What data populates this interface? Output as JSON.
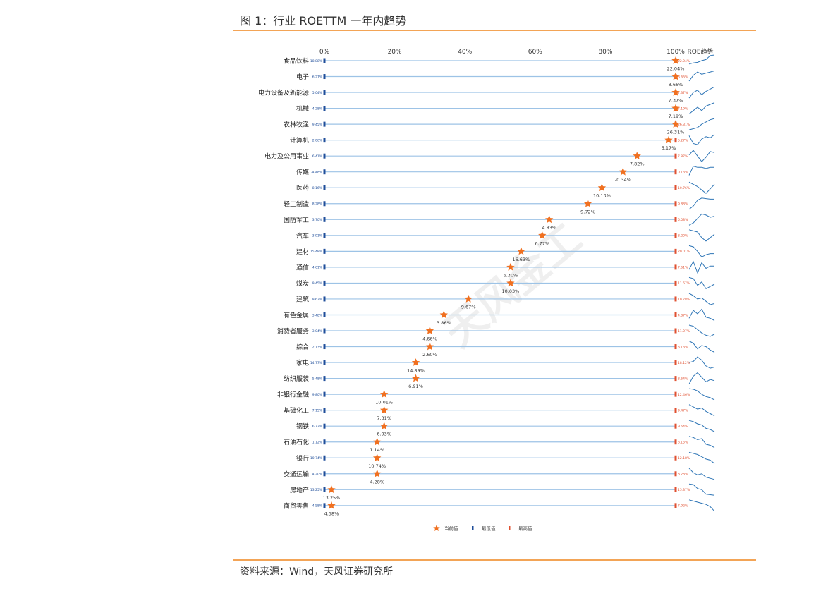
{
  "figure_title": "图 1：行业 ROETTM 一年内趋势",
  "source": "资料来源：Wind，天风证券研究所",
  "watermark": "天风金工",
  "colors": {
    "accent": "#f5a04f",
    "current": "#f07020",
    "min": "#1f4e9a",
    "max": "#e05030",
    "line": "#9dc3e6",
    "trend": "#2e75b6"
  },
  "chart_data": {
    "type": "scatter",
    "title": "",
    "x_axis_ticks": [
      "0%",
      "20%",
      "40%",
      "60%",
      "80%",
      "100%"
    ],
    "trend_column_title": "ROE趋势",
    "xlim": [
      0,
      100
    ],
    "legend": {
      "position": "bottom-center",
      "items": [
        "当前值",
        "最低值",
        "最高值"
      ]
    },
    "series": [
      {
        "name": "当前值",
        "marker": "star",
        "color": "#f07020"
      },
      {
        "name": "最低值",
        "marker": "bar",
        "color": "#1f4e9a"
      },
      {
        "name": "最高值",
        "marker": "bar",
        "color": "#e05030"
      }
    ],
    "industries": [
      {
        "name": "食品饮料",
        "pos": 100,
        "current": "22.04%",
        "min": "18.88%",
        "max": "22.04%",
        "trend": [
          0.2,
          0.3,
          0.35,
          0.5,
          0.6,
          0.95,
          1.0
        ]
      },
      {
        "name": "电子",
        "pos": 100,
        "current": "8.66%",
        "min": "6.27%",
        "max": "8.66%",
        "trend": [
          0.1,
          0.6,
          0.9,
          0.7,
          0.8,
          0.9,
          1.0
        ]
      },
      {
        "name": "电力设备及新能源",
        "pos": 100,
        "current": "7.37%",
        "min": "5.04%",
        "max": "7.37%",
        "trend": [
          0.0,
          0.5,
          0.7,
          0.3,
          0.6,
          0.8,
          1.0
        ]
      },
      {
        "name": "机械",
        "pos": 100,
        "current": "7.19%",
        "min": "4.28%",
        "max": "7.19%",
        "trend": [
          0.0,
          0.3,
          0.6,
          0.3,
          0.7,
          0.85,
          1.0
        ]
      },
      {
        "name": "农林牧渔",
        "pos": 100,
        "current": "26.31%",
        "min": "9.45%",
        "max": "26.31%",
        "trend": [
          0.0,
          0.1,
          0.2,
          0.5,
          0.7,
          0.9,
          1.0
        ]
      },
      {
        "name": "计算机",
        "pos": 98,
        "current": "5.17%",
        "min": "2.06%",
        "max": "5.27%",
        "trend": [
          0.9,
          0.2,
          0.1,
          0.6,
          0.8,
          0.7,
          1.0
        ]
      },
      {
        "name": "电力及公用事业",
        "pos": 89,
        "current": "7.82%",
        "min": "6.41%",
        "max": "7.87%",
        "trend": [
          0.6,
          1.0,
          0.5,
          0.0,
          0.4,
          0.9,
          0.8
        ]
      },
      {
        "name": "传媒",
        "pos": 85,
        "current": "-0.34%",
        "min": "-4.48%",
        "max": "0.16%",
        "trend": [
          0.2,
          1.0,
          0.9,
          0.9,
          0.8,
          0.9,
          0.9
        ]
      },
      {
        "name": "医药",
        "pos": 79,
        "current": "10.13%",
        "min": "8.16%",
        "max": "10.76%",
        "trend": [
          1.0,
          0.8,
          0.6,
          0.3,
          0.0,
          0.4,
          0.8
        ]
      },
      {
        "name": "轻工制造",
        "pos": 75,
        "current": "9.72%",
        "min": "8.28%",
        "max": "9.88%",
        "trend": [
          0.0,
          0.3,
          0.8,
          1.0,
          0.95,
          0.9,
          0.9
        ]
      },
      {
        "name": "国防军工",
        "pos": 64,
        "current": "4.83%",
        "min": "3.70%",
        "max": "5.08%",
        "trend": [
          0.0,
          0.2,
          0.6,
          1.0,
          0.9,
          0.7,
          0.8
        ]
      },
      {
        "name": "汽车",
        "pos": 62,
        "current": "6.77%",
        "min": "3.91%",
        "max": "8.20%",
        "trend": [
          1.0,
          0.9,
          0.8,
          0.3,
          0.0,
          0.3,
          0.6
        ]
      },
      {
        "name": "建材",
        "pos": 56,
        "current": "16.63%",
        "min": "15.48%",
        "max": "20.01%",
        "trend": [
          1.0,
          0.9,
          0.5,
          0.0,
          0.2,
          0.3,
          0.3
        ]
      },
      {
        "name": "通信",
        "pos": 53,
        "current": "6.30%",
        "min": "4.61%",
        "max": "7.61%",
        "trend": [
          0.3,
          1.0,
          0.0,
          0.9,
          0.4,
          0.6,
          0.6
        ]
      },
      {
        "name": "煤炭",
        "pos": 53,
        "current": "10.03%",
        "min": "9.45%",
        "max": "11.67%",
        "trend": [
          1.0,
          0.9,
          0.3,
          0.6,
          0.0,
          0.2,
          0.4
        ]
      },
      {
        "name": "建筑",
        "pos": 41,
        "current": "9.67%",
        "min": "9.63%",
        "max": "10.78%",
        "trend": [
          1.0,
          0.8,
          0.5,
          0.6,
          0.3,
          0.0,
          0.1
        ]
      },
      {
        "name": "有色金属",
        "pos": 34,
        "current": "3.86%",
        "min": "3.48%",
        "max": "4.87%",
        "trend": [
          0.2,
          0.9,
          0.6,
          1.0,
          0.3,
          0.2,
          0.0
        ]
      },
      {
        "name": "消费者服务",
        "pos": 30,
        "current": "4.66%",
        "min": "3.04%",
        "max": "11.07%",
        "trend": [
          1.0,
          0.9,
          0.6,
          0.3,
          0.1,
          0.0,
          0.2
        ]
      },
      {
        "name": "综合",
        "pos": 30,
        "current": "2.60%",
        "min": "2.13%",
        "max": "3.16%",
        "trend": [
          1.0,
          0.8,
          0.3,
          0.6,
          0.5,
          0.2,
          0.0
        ]
      },
      {
        "name": "家电",
        "pos": 26,
        "current": "14.89%",
        "min": "14.77%",
        "max": "18.12%",
        "trend": [
          0.5,
          0.6,
          1.0,
          0.7,
          0.2,
          0.0,
          0.1
        ]
      },
      {
        "name": "纺织服装",
        "pos": 26,
        "current": "6.91%",
        "min": "5.48%",
        "max": "8.64%",
        "trend": [
          0.0,
          0.7,
          1.0,
          0.6,
          0.2,
          0.4,
          0.3
        ]
      },
      {
        "name": "非银行金融",
        "pos": 17,
        "current": "10.01%",
        "min": "9.80%",
        "max": "12.46%",
        "trend": [
          1.0,
          0.95,
          0.8,
          0.5,
          0.3,
          0.2,
          0.0
        ]
      },
      {
        "name": "基础化工",
        "pos": 17,
        "current": "7.31%",
        "min": "7.15%",
        "max": "9.47%",
        "trend": [
          1.0,
          0.8,
          0.6,
          0.7,
          0.4,
          0.2,
          0.0
        ]
      },
      {
        "name": "钢铁",
        "pos": 17,
        "current": "6.93%",
        "min": "6.73%",
        "max": "9.64%",
        "trend": [
          1.0,
          0.9,
          0.7,
          0.6,
          0.3,
          0.2,
          0.0
        ]
      },
      {
        "name": "石油石化",
        "pos": 15,
        "current": "1.14%",
        "min": "1.12%",
        "max": "6.15%",
        "trend": [
          1.0,
          0.9,
          0.7,
          0.8,
          0.3,
          0.2,
          0.0
        ]
      },
      {
        "name": "银行",
        "pos": 15,
        "current": "10.74%",
        "min": "10.74%",
        "max": "12.18%",
        "trend": [
          1.0,
          0.9,
          0.8,
          0.6,
          0.4,
          0.3,
          0.0
        ]
      },
      {
        "name": "交通运输",
        "pos": 15,
        "current": "4.28%",
        "min": "4.20%",
        "max": "8.28%",
        "trend": [
          1.0,
          0.6,
          0.4,
          0.5,
          0.2,
          0.1,
          0.0
        ]
      },
      {
        "name": "房地产",
        "pos": 2,
        "current": "13.25%",
        "min": "13.25%",
        "max": "15.37%",
        "trend": [
          1.0,
          0.95,
          0.6,
          0.5,
          0.1,
          0.05,
          0.0
        ]
      },
      {
        "name": "商贸零售",
        "pos": 2,
        "current": "4.58%",
        "min": "4.58%",
        "max": "7.92%",
        "trend": [
          1.0,
          0.9,
          0.8,
          0.7,
          0.6,
          0.4,
          0.0
        ]
      }
    ]
  }
}
